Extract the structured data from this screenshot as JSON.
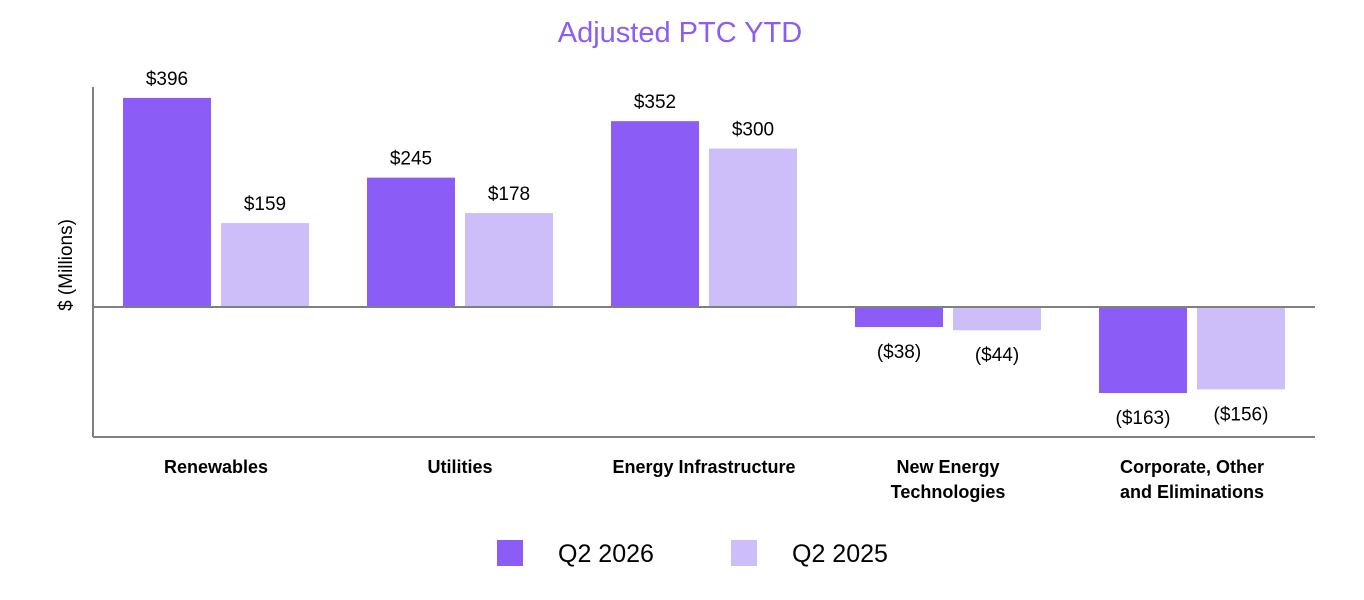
{
  "chart_data": {
    "type": "bar",
    "title": "Adjusted PTC YTD",
    "ylabel": "$ (Millions)",
    "categories": [
      [
        "Renewables"
      ],
      [
        "Utilities"
      ],
      [
        "Energy Infrastructure"
      ],
      [
        "New Energy",
        "Technologies"
      ],
      [
        "Corporate, Other",
        "and Eliminations"
      ]
    ],
    "series": [
      {
        "name": "Q2 2026",
        "color": "#8B5CF6",
        "values": [
          396,
          245,
          352,
          -38,
          -163
        ],
        "labels": [
          "$396",
          "$245",
          "$352",
          "($38)",
          "($163)"
        ]
      },
      {
        "name": "Q2 2025",
        "color": "#CDBEFA",
        "values": [
          159,
          178,
          300,
          -44,
          -156
        ],
        "labels": [
          "$159",
          "$178",
          "$300",
          "($44)",
          "($156)"
        ]
      }
    ],
    "ylim": [
      -245,
      415
    ],
    "grid": false,
    "legend_position": "bottom",
    "title_color": "#8B5CF6",
    "axis_color": "#7F7F7F"
  }
}
